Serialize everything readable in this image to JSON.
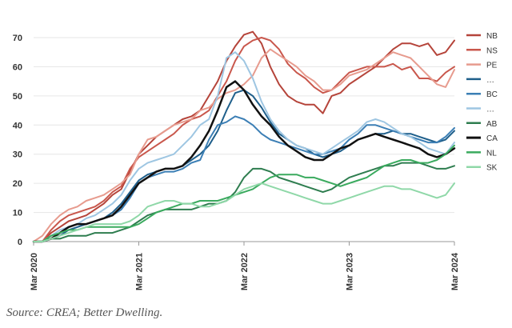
{
  "source": "Source: CREA; Better Dwelling.",
  "chart_data": {
    "type": "line",
    "title": "",
    "xlabel": "",
    "ylabel": "",
    "ylim": [
      0,
      72
    ],
    "yticks": [
      0,
      10,
      20,
      30,
      40,
      50,
      60,
      70
    ],
    "xlim": [
      0,
      48
    ],
    "xticks": [
      {
        "value": 0,
        "label": "Mar 2020"
      },
      {
        "value": 12,
        "label": "Mar 2021"
      },
      {
        "value": 24,
        "label": "Mar 2022"
      },
      {
        "value": 36,
        "label": "Mar 2023"
      },
      {
        "value": 48,
        "label": "Mar 2024"
      }
    ],
    "grid": "horizontal",
    "legend_position": "right",
    "x": [
      0,
      1,
      2,
      3,
      4,
      5,
      6,
      7,
      8,
      9,
      10,
      11,
      12,
      13,
      14,
      15,
      16,
      17,
      18,
      19,
      20,
      21,
      22,
      23,
      24,
      25,
      26,
      27,
      28,
      29,
      30,
      31,
      32,
      33,
      34,
      35,
      36,
      37,
      38,
      39,
      40,
      41,
      42,
      43,
      44,
      45,
      46,
      47,
      48
    ],
    "series": [
      {
        "name": "NB",
        "color": "#b5443a",
        "width": 2,
        "values": [
          0,
          0,
          3,
          5,
          7,
          8,
          9,
          11,
          13,
          16,
          18,
          24,
          30,
          33,
          36,
          38,
          40,
          42,
          43,
          45,
          50,
          55,
          62,
          67,
          71,
          72,
          68,
          60,
          54,
          50,
          48,
          47,
          47,
          44,
          50,
          51,
          54,
          56,
          58,
          60,
          63,
          66,
          68,
          68,
          67,
          68,
          64,
          65,
          69
        ]
      },
      {
        "name": "NS",
        "color": "#c9574c",
        "width": 2,
        "values": [
          0,
          0,
          4,
          7,
          9,
          10,
          11,
          12,
          14,
          17,
          19,
          25,
          29,
          31,
          33,
          35,
          37,
          40,
          42,
          43,
          45,
          50,
          55,
          62,
          67,
          69,
          70,
          69,
          66,
          61,
          58,
          56,
          53,
          51,
          52,
          55,
          58,
          59,
          60,
          60,
          60,
          61,
          59,
          60,
          56,
          56,
          55,
          58,
          60
        ]
      },
      {
        "name": "PE",
        "color": "#e79b8e",
        "width": 2,
        "values": [
          0,
          2,
          6,
          9,
          11,
          12,
          14,
          15,
          16,
          18,
          20,
          23,
          30,
          35,
          36,
          38,
          40,
          41,
          42,
          45,
          46,
          49,
          51,
          52,
          54,
          57,
          63,
          66,
          64,
          62,
          60,
          57,
          55,
          52,
          52,
          54,
          57,
          58,
          59,
          61,
          63,
          65,
          64,
          63,
          60,
          57,
          54,
          53,
          59
        ]
      },
      {
        "name": "…",
        "color": "#1f5f8b",
        "width": 2,
        "values": [
          0,
          0,
          1,
          2,
          4,
          5,
          6,
          7,
          8,
          10,
          13,
          17,
          21,
          23,
          24,
          25,
          25,
          26,
          28,
          30,
          33,
          38,
          45,
          51,
          52,
          50,
          46,
          41,
          37,
          35,
          33,
          32,
          30,
          29,
          30,
          31,
          33,
          35,
          36,
          37,
          37,
          38,
          37,
          37,
          36,
          35,
          34,
          35,
          38
        ]
      },
      {
        "name": "BC",
        "color": "#3c7fb5",
        "width": 2,
        "values": [
          0,
          0,
          1,
          3,
          5,
          6,
          6,
          7,
          8,
          9,
          11,
          15,
          20,
          22,
          23,
          24,
          24,
          25,
          27,
          28,
          35,
          40,
          41,
          43,
          42,
          40,
          37,
          35,
          34,
          33,
          32,
          31,
          30,
          30,
          31,
          32,
          35,
          37,
          40,
          40,
          39,
          38,
          37,
          36,
          35,
          34,
          34,
          36,
          39
        ]
      },
      {
        "name": "…",
        "color": "#9ec6e2",
        "width": 2,
        "values": [
          0,
          0,
          2,
          4,
          5,
          6,
          8,
          9,
          11,
          13,
          16,
          21,
          25,
          27,
          28,
          29,
          30,
          33,
          36,
          40,
          42,
          50,
          63,
          65,
          62,
          56,
          48,
          42,
          38,
          35,
          33,
          32,
          31,
          30,
          32,
          34,
          36,
          38,
          41,
          42,
          41,
          39,
          37,
          36,
          34,
          32,
          31,
          30,
          34
        ]
      },
      {
        "name": "AB",
        "color": "#2e7d4f",
        "width": 2,
        "values": [
          0,
          0,
          1,
          1,
          2,
          2,
          2,
          3,
          3,
          3,
          4,
          5,
          7,
          9,
          10,
          11,
          11,
          11,
          11,
          12,
          13,
          13,
          14,
          17,
          22,
          25,
          25,
          24,
          22,
          21,
          20,
          19,
          18,
          17,
          18,
          20,
          22,
          23,
          24,
          25,
          26,
          26,
          27,
          27,
          27,
          26,
          25,
          25,
          26
        ]
      },
      {
        "name": "CA",
        "color": "#111111",
        "width": 2.5,
        "values": [
          0,
          0,
          1,
          3,
          5,
          6,
          6,
          7,
          8,
          9,
          12,
          16,
          20,
          22,
          24,
          25,
          25,
          26,
          29,
          33,
          38,
          45,
          53,
          55,
          52,
          47,
          43,
          40,
          36,
          33,
          31,
          29,
          28,
          28,
          30,
          32,
          33,
          35,
          36,
          37,
          36,
          35,
          34,
          33,
          32,
          30,
          29,
          30,
          32
        ]
      },
      {
        "name": "NL",
        "color": "#3aaa5e",
        "width": 2,
        "values": [
          0,
          0,
          2,
          3,
          4,
          4,
          5,
          5,
          5,
          5,
          5,
          5,
          6,
          8,
          10,
          11,
          12,
          13,
          13,
          14,
          14,
          14,
          15,
          16,
          17,
          18,
          20,
          22,
          23,
          23,
          23,
          22,
          22,
          21,
          20,
          19,
          20,
          21,
          22,
          24,
          26,
          27,
          28,
          28,
          27,
          27,
          28,
          30,
          33
        ]
      },
      {
        "name": "SK",
        "color": "#8fd8a8",
        "width": 2,
        "values": [
          0,
          0,
          1,
          2,
          3,
          4,
          5,
          6,
          6,
          6,
          6,
          7,
          9,
          12,
          13,
          14,
          14,
          13,
          13,
          12,
          12,
          13,
          14,
          16,
          18,
          19,
          20,
          19,
          18,
          17,
          16,
          15,
          14,
          13,
          13,
          14,
          15,
          16,
          17,
          18,
          19,
          19,
          18,
          18,
          17,
          16,
          15,
          16,
          20
        ]
      }
    ]
  }
}
